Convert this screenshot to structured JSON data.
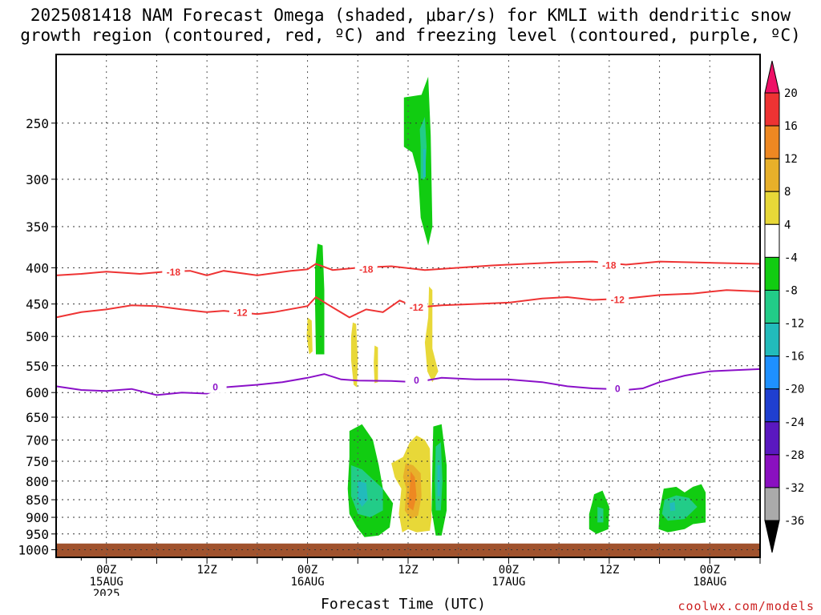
{
  "title_line1": "2025081418 NAM Forecast Omega (shaded, μbar/s) for KMLI with dendritic snow",
  "title_line2": "growth region (contoured, red, ºC) and freezing level (contoured, purple, ºC)",
  "xlabel": "Forecast Time (UTC)",
  "credit": "coolwx.com/models",
  "chart_data": {
    "type": "heatmap",
    "x_unit": "forecast hour",
    "x_range": [
      -6,
      78
    ],
    "y_pressure_range_hPa": [
      1025,
      200
    ],
    "y_ticks": [
      250,
      300,
      350,
      400,
      450,
      500,
      550,
      600,
      650,
      700,
      750,
      800,
      850,
      900,
      950,
      1000
    ],
    "x_ticks": [
      {
        "hour": 0,
        "l1": "00Z",
        "l2": "15AUG",
        "l3": "2025"
      },
      {
        "hour": 12,
        "l1": "12Z",
        "l2": "",
        "l3": ""
      },
      {
        "hour": 24,
        "l1": "00Z",
        "l2": "16AUG",
        "l3": ""
      },
      {
        "hour": 36,
        "l1": "12Z",
        "l2": "",
        "l3": ""
      },
      {
        "hour": 48,
        "l1": "00Z",
        "l2": "17AUG",
        "l3": ""
      },
      {
        "hour": 60,
        "l1": "12Z",
        "l2": "",
        "l3": ""
      },
      {
        "hour": 72,
        "l1": "00Z",
        "l2": "18AUG",
        "l3": ""
      }
    ],
    "grid": true,
    "ground_level_hPa": 980,
    "ground_color": "#a0522d",
    "colorbar": {
      "labels": [
        "20",
        "16",
        "12",
        "8",
        "4",
        "-4",
        "-8",
        "-12",
        "-16",
        "-20",
        "-24",
        "-28",
        "-32",
        "-36"
      ],
      "colors": [
        "#ee1166",
        "#ee3333",
        "#ee8822",
        "#e8b02a",
        "#e8d838",
        "#ffffff",
        "#11cc11",
        "#22cc88",
        "#22bbbb",
        "#1e90ff",
        "#1f3fd0",
        "#5a18c0",
        "#8a10c0",
        "#aaaaaa",
        "#000000"
      ]
    },
    "contours": [
      {
        "name": "-18",
        "color": "#ee3333",
        "points": [
          [
            -6,
            410
          ],
          [
            -3,
            408
          ],
          [
            0,
            405
          ],
          [
            4,
            408
          ],
          [
            7,
            405
          ],
          [
            10,
            404
          ],
          [
            12,
            410
          ],
          [
            14,
            404
          ],
          [
            18,
            410
          ],
          [
            22,
            404
          ],
          [
            24,
            402
          ],
          [
            25,
            395
          ],
          [
            27,
            403
          ],
          [
            30,
            400
          ],
          [
            34,
            398
          ],
          [
            38,
            403
          ],
          [
            42,
            400
          ],
          [
            46,
            397
          ],
          [
            50,
            395
          ],
          [
            54,
            393
          ],
          [
            58,
            392
          ],
          [
            62,
            396
          ],
          [
            66,
            392
          ],
          [
            70,
            393
          ],
          [
            74,
            394
          ],
          [
            78,
            395
          ]
        ],
        "labels": [
          {
            "hour": 8,
            "hPa": 406
          },
          {
            "hour": 31,
            "hPa": 402
          },
          {
            "hour": 60,
            "hPa": 397
          }
        ]
      },
      {
        "name": "-12",
        "color": "#ee3333",
        "points": [
          [
            -6,
            470
          ],
          [
            -3,
            462
          ],
          [
            0,
            458
          ],
          [
            3,
            452
          ],
          [
            6,
            453
          ],
          [
            9,
            458
          ],
          [
            12,
            462
          ],
          [
            14,
            460
          ],
          [
            18,
            465
          ],
          [
            20,
            462
          ],
          [
            24,
            453
          ],
          [
            25,
            440
          ],
          [
            27,
            455
          ],
          [
            29,
            470
          ],
          [
            31,
            458
          ],
          [
            33,
            462
          ],
          [
            35,
            445
          ],
          [
            37,
            455
          ],
          [
            40,
            452
          ],
          [
            44,
            450
          ],
          [
            48,
            448
          ],
          [
            52,
            442
          ],
          [
            55,
            440
          ],
          [
            58,
            444
          ],
          [
            62,
            442
          ],
          [
            66,
            437
          ],
          [
            70,
            435
          ],
          [
            74,
            430
          ],
          [
            78,
            432
          ]
        ],
        "labels": [
          {
            "hour": 16,
            "hPa": 463
          },
          {
            "hour": 37,
            "hPa": 455
          },
          {
            "hour": 61,
            "hPa": 444
          }
        ]
      },
      {
        "name": "0",
        "color": "#8a10c8",
        "points": [
          [
            -6,
            588
          ],
          [
            -3,
            595
          ],
          [
            0,
            597
          ],
          [
            3,
            593
          ],
          [
            6,
            605
          ],
          [
            9,
            600
          ],
          [
            12,
            602
          ],
          [
            14,
            590
          ],
          [
            18,
            585
          ],
          [
            21,
            580
          ],
          [
            24,
            572
          ],
          [
            26,
            565
          ],
          [
            28,
            575
          ],
          [
            30,
            577
          ],
          [
            34,
            578
          ],
          [
            37,
            580
          ],
          [
            40,
            572
          ],
          [
            44,
            575
          ],
          [
            48,
            575
          ],
          [
            52,
            580
          ],
          [
            55,
            588
          ],
          [
            58,
            592
          ],
          [
            60,
            593
          ],
          [
            62,
            595
          ],
          [
            64,
            592
          ],
          [
            66,
            580
          ],
          [
            69,
            568
          ],
          [
            72,
            560
          ],
          [
            75,
            558
          ],
          [
            78,
            556
          ]
        ],
        "labels": [
          {
            "hour": 13,
            "hPa": 590
          },
          {
            "hour": 37,
            "hPa": 577
          },
          {
            "hour": 61,
            "hPa": 593
          }
        ]
      }
    ],
    "omega_regions": [
      {
        "level": "-4",
        "color": "#11cc11",
        "outline": [
          [
            35.5,
            230
          ],
          [
            37.6,
            228
          ],
          [
            38.4,
            215
          ],
          [
            38.7,
            260
          ],
          [
            38.9,
            350
          ],
          [
            38.4,
            372
          ],
          [
            37.5,
            340
          ],
          [
            37.2,
            295
          ],
          [
            36.5,
            275
          ],
          [
            35.5,
            270
          ]
        ]
      },
      {
        "level": "-8",
        "color": "#22cc88",
        "outline": [
          [
            37.4,
            255
          ],
          [
            38.0,
            245
          ],
          [
            38.2,
            270
          ],
          [
            38.0,
            300
          ],
          [
            37.5,
            300
          ],
          [
            37.5,
            270
          ]
        ]
      },
      {
        "level": "-12",
        "color": "#22bbbb",
        "outline": [
          [
            37.8,
            272
          ],
          [
            38.1,
            272
          ],
          [
            38.1,
            298
          ],
          [
            37.8,
            298
          ]
        ]
      },
      {
        "level": "-4",
        "color": "#11cc11",
        "outline": [
          [
            25.2,
            370
          ],
          [
            25.8,
            372
          ],
          [
            26.0,
            430
          ],
          [
            26.0,
            530
          ],
          [
            25.0,
            530
          ],
          [
            24.9,
            450
          ],
          [
            24.9,
            400
          ]
        ]
      },
      {
        "level": "4",
        "color": "#e8d838",
        "outline": [
          [
            24.0,
            470
          ],
          [
            24.5,
            475
          ],
          [
            24.6,
            525
          ],
          [
            24.2,
            530
          ],
          [
            23.9,
            500
          ]
        ]
      },
      {
        "level": "4",
        "color": "#e8d838",
        "outline": [
          [
            29.4,
            478
          ],
          [
            29.8,
            480
          ],
          [
            30.0,
            540
          ],
          [
            29.9,
            590
          ],
          [
            29.5,
            585
          ],
          [
            29.2,
            540
          ],
          [
            29.2,
            500
          ]
        ]
      },
      {
        "level": "4",
        "color": "#e8d838",
        "outline": [
          [
            32.0,
            515
          ],
          [
            32.4,
            518
          ],
          [
            32.4,
            580
          ],
          [
            32.0,
            582
          ],
          [
            31.9,
            545
          ]
        ]
      },
      {
        "level": "4",
        "color": "#e8d838",
        "outline": [
          [
            38.5,
            425
          ],
          [
            38.9,
            430
          ],
          [
            38.9,
            520
          ],
          [
            39.6,
            560
          ],
          [
            38.9,
            580
          ],
          [
            38.3,
            560
          ],
          [
            38.0,
            510
          ],
          [
            38.4,
            470
          ]
        ]
      },
      {
        "level": "-4",
        "color": "#11cc11",
        "outline": [
          [
            29.0,
            680
          ],
          [
            30.5,
            665
          ],
          [
            31.8,
            700
          ],
          [
            32.5,
            760
          ],
          [
            33.0,
            820
          ],
          [
            34.2,
            860
          ],
          [
            33.8,
            930
          ],
          [
            32.5,
            955
          ],
          [
            30.8,
            960
          ],
          [
            29.9,
            930
          ],
          [
            29.0,
            890
          ],
          [
            28.8,
            820
          ],
          [
            29.0,
            740
          ]
        ]
      },
      {
        "level": "-8",
        "color": "#22cc88",
        "outline": [
          [
            29.2,
            760
          ],
          [
            30.5,
            770
          ],
          [
            31.5,
            790
          ],
          [
            33.0,
            820
          ],
          [
            33.0,
            880
          ],
          [
            31.5,
            900
          ],
          [
            30.0,
            890
          ],
          [
            29.2,
            840
          ]
        ]
      },
      {
        "level": "-12",
        "color": "#22bbbb",
        "outline": [
          [
            30.0,
            800
          ],
          [
            31.0,
            805
          ],
          [
            31.2,
            850
          ],
          [
            30.5,
            870
          ],
          [
            30.0,
            850
          ]
        ]
      },
      {
        "level": "4",
        "color": "#e8d838",
        "outline": [
          [
            34.0,
            755
          ],
          [
            35.4,
            740
          ],
          [
            36.2,
            705
          ],
          [
            37.0,
            690
          ],
          [
            38.0,
            700
          ],
          [
            38.6,
            720
          ],
          [
            38.7,
            800
          ],
          [
            38.8,
            900
          ],
          [
            38.6,
            940
          ],
          [
            37.0,
            945
          ],
          [
            36.0,
            935
          ],
          [
            35.3,
            945
          ],
          [
            34.9,
            890
          ],
          [
            35.2,
            820
          ],
          [
            34.4,
            790
          ]
        ]
      },
      {
        "level": "8",
        "color": "#e8b02a",
        "outline": [
          [
            35.7,
            755
          ],
          [
            36.6,
            760
          ],
          [
            37.5,
            780
          ],
          [
            37.6,
            840
          ],
          [
            37.2,
            895
          ],
          [
            36.3,
            905
          ],
          [
            35.6,
            880
          ],
          [
            35.8,
            820
          ],
          [
            35.4,
            790
          ]
        ]
      },
      {
        "level": "12",
        "color": "#ee8822",
        "outline": [
          [
            36.3,
            775
          ],
          [
            36.8,
            790
          ],
          [
            37.0,
            840
          ],
          [
            36.6,
            880
          ],
          [
            36.0,
            870
          ],
          [
            36.2,
            820
          ]
        ]
      },
      {
        "level": "-4",
        "color": "#11cc11",
        "outline": [
          [
            39.0,
            670
          ],
          [
            40.0,
            665
          ],
          [
            40.6,
            760
          ],
          [
            40.6,
            880
          ],
          [
            40.0,
            955
          ],
          [
            39.3,
            955
          ],
          [
            38.8,
            880
          ],
          [
            38.9,
            760
          ]
        ]
      },
      {
        "level": "-8",
        "color": "#22cc88",
        "outline": [
          [
            39.3,
            715
          ],
          [
            39.9,
            705
          ],
          [
            40.1,
            800
          ],
          [
            39.9,
            880
          ],
          [
            39.3,
            880
          ],
          [
            39.2,
            800
          ]
        ]
      },
      {
        "level": "-12",
        "color": "#22bbbb",
        "outline": [
          [
            39.5,
            760
          ],
          [
            39.8,
            760
          ],
          [
            39.8,
            840
          ],
          [
            39.5,
            840
          ]
        ]
      },
      {
        "level": "-4",
        "color": "#11cc11",
        "outline": [
          [
            58.2,
            835
          ],
          [
            59.2,
            825
          ],
          [
            60.0,
            870
          ],
          [
            59.9,
            935
          ],
          [
            58.5,
            950
          ],
          [
            57.6,
            935
          ],
          [
            57.6,
            890
          ],
          [
            58.0,
            855
          ]
        ]
      },
      {
        "level": "-8",
        "color": "#22cc88",
        "outline": [
          [
            58.6,
            870
          ],
          [
            59.3,
            875
          ],
          [
            59.3,
            915
          ],
          [
            58.6,
            915
          ]
        ]
      },
      {
        "level": "-4",
        "color": "#11cc11",
        "outline": [
          [
            66.5,
            820
          ],
          [
            68.0,
            815
          ],
          [
            69.0,
            830
          ],
          [
            70.0,
            815
          ],
          [
            71.0,
            808
          ],
          [
            71.5,
            830
          ],
          [
            71.5,
            890
          ],
          [
            71.5,
            915
          ],
          [
            70.0,
            920
          ],
          [
            69.0,
            935
          ],
          [
            67.0,
            945
          ],
          [
            65.9,
            935
          ],
          [
            66.0,
            880
          ]
        ]
      },
      {
        "level": "-8",
        "color": "#22cc88",
        "outline": [
          [
            66.6,
            850
          ],
          [
            68.0,
            838
          ],
          [
            69.5,
            845
          ],
          [
            70.5,
            870
          ],
          [
            69.0,
            905
          ],
          [
            67.0,
            910
          ],
          [
            66.3,
            890
          ]
        ]
      },
      {
        "level": "-12",
        "color": "#22bbbb",
        "outline": [
          [
            67.2,
            860
          ],
          [
            67.8,
            856
          ],
          [
            67.9,
            880
          ],
          [
            67.3,
            882
          ]
        ]
      }
    ]
  }
}
